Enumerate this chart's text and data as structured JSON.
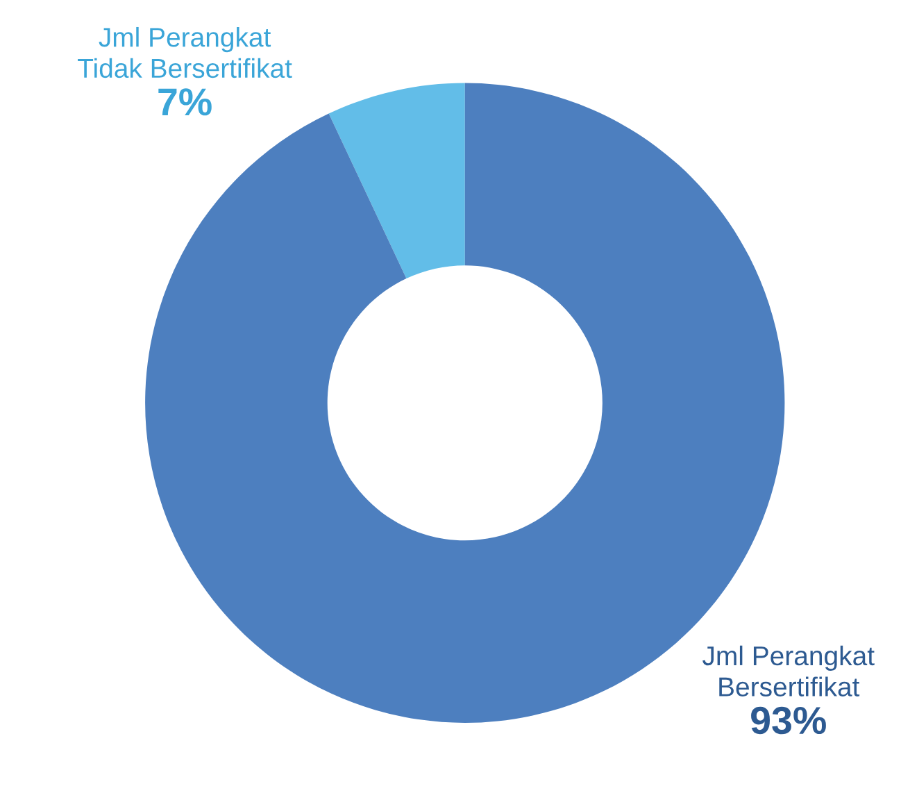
{
  "chart_data": {
    "type": "donut",
    "categories": [
      "Jml Perangkat\nTidak Bersertifikat",
      "Jml Perangkat\nBersertifikat"
    ],
    "values": [
      7,
      93
    ],
    "colors": [
      "#62bde8",
      "#4d7fbf"
    ],
    "value_labels": [
      "7%",
      "93%"
    ],
    "legend": false
  }
}
